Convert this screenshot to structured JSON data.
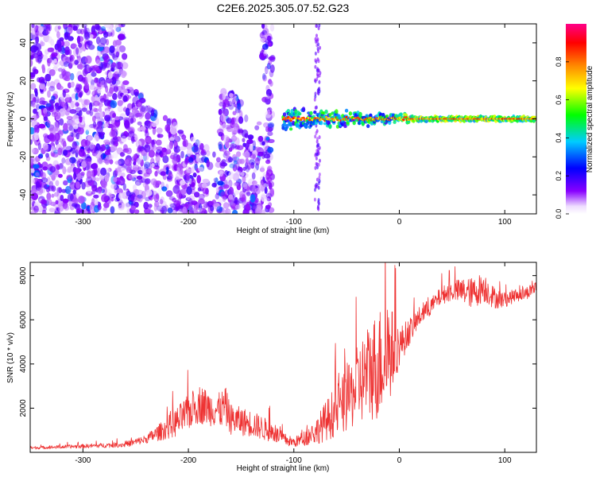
{
  "chart_data": [
    {
      "type": "heatmap",
      "title": "C2E6.2025.305.07.52.G23",
      "xlabel": "Height of straight line (km)",
      "ylabel": "Frequency (Hz)",
      "xlim": [
        -350,
        130
      ],
      "ylim": [
        -50,
        50
      ],
      "xticks": [
        -300,
        -200,
        -100,
        0,
        100
      ],
      "yticks": [
        -40,
        -20,
        0,
        20,
        40
      ],
      "colorbar": {
        "label": "Normalized spectral amplitude",
        "range": [
          0,
          1
        ],
        "ticks": [
          "0.0",
          "0.2",
          "0.4",
          "0.6",
          "0.8"
        ],
        "colors": [
          "#ffffff",
          "#8800ff",
          "#0000ff",
          "#00ccff",
          "#00ff00",
          "#ffff00",
          "#ff8800",
          "#ff0000",
          "#ff0066"
        ]
      },
      "features": [
        {
          "name": "Scatter cloud",
          "x_range": [
            -350,
            -120
          ],
          "freq_range": [
            -50,
            50
          ],
          "amplitude": 0.15
        },
        {
          "name": "Stable signal line",
          "x_range": [
            -110,
            130
          ],
          "freq": 0,
          "amplitude": 0.85
        },
        {
          "name": "Secondary signal feature",
          "x_range": [
            -80,
            -75
          ],
          "freq_range": [
            -50,
            50
          ],
          "amplitude": 0.1
        }
      ]
    },
    {
      "type": "line",
      "xlabel": "Height of straight line (km)",
      "ylabel": "SNR (10 * v/v)",
      "xlim": [
        -350,
        130
      ],
      "ylim": [
        0,
        8600
      ],
      "xticks": [
        -300,
        -200,
        -100,
        0,
        100
      ],
      "yticks": [
        2000,
        4000,
        6000,
        8000
      ],
      "series": [
        {
          "name": "SNR",
          "color": "#ee3333",
          "x": [
            -350,
            -300,
            -260,
            -240,
            -220,
            -210,
            -200,
            -190,
            -180,
            -170,
            -165,
            -160,
            -150,
            -140,
            -130,
            -120,
            -110,
            -100,
            -90,
            -80,
            -70,
            -60,
            -50,
            -40,
            -30,
            -20,
            -10,
            0,
            10,
            20,
            30,
            40,
            50,
            60,
            70,
            80,
            90,
            100,
            110,
            120,
            130
          ],
          "values": [
            200,
            280,
            350,
            600,
            1100,
            1400,
            1800,
            2200,
            2000,
            1900,
            2100,
            1500,
            1400,
            1300,
            1100,
            900,
            600,
            450,
            650,
            900,
            1400,
            1900,
            2300,
            3000,
            3600,
            4000,
            4500,
            4800,
            5500,
            6200,
            6600,
            7100,
            7300,
            7300,
            7200,
            7500,
            7000,
            6900,
            7100,
            7200,
            7500
          ],
          "noise": [
            60,
            90,
            120,
            200,
            500,
            700,
            800,
            900,
            800,
            800,
            900,
            700,
            650,
            600,
            550,
            450,
            300,
            220,
            350,
            550,
            900,
            1200,
            1400,
            1800,
            2200,
            2600,
            2400,
            900,
            600,
            450,
            400,
            400,
            450,
            600,
            700,
            700,
            500,
            350,
            300,
            300,
            300
          ]
        }
      ]
    }
  ]
}
